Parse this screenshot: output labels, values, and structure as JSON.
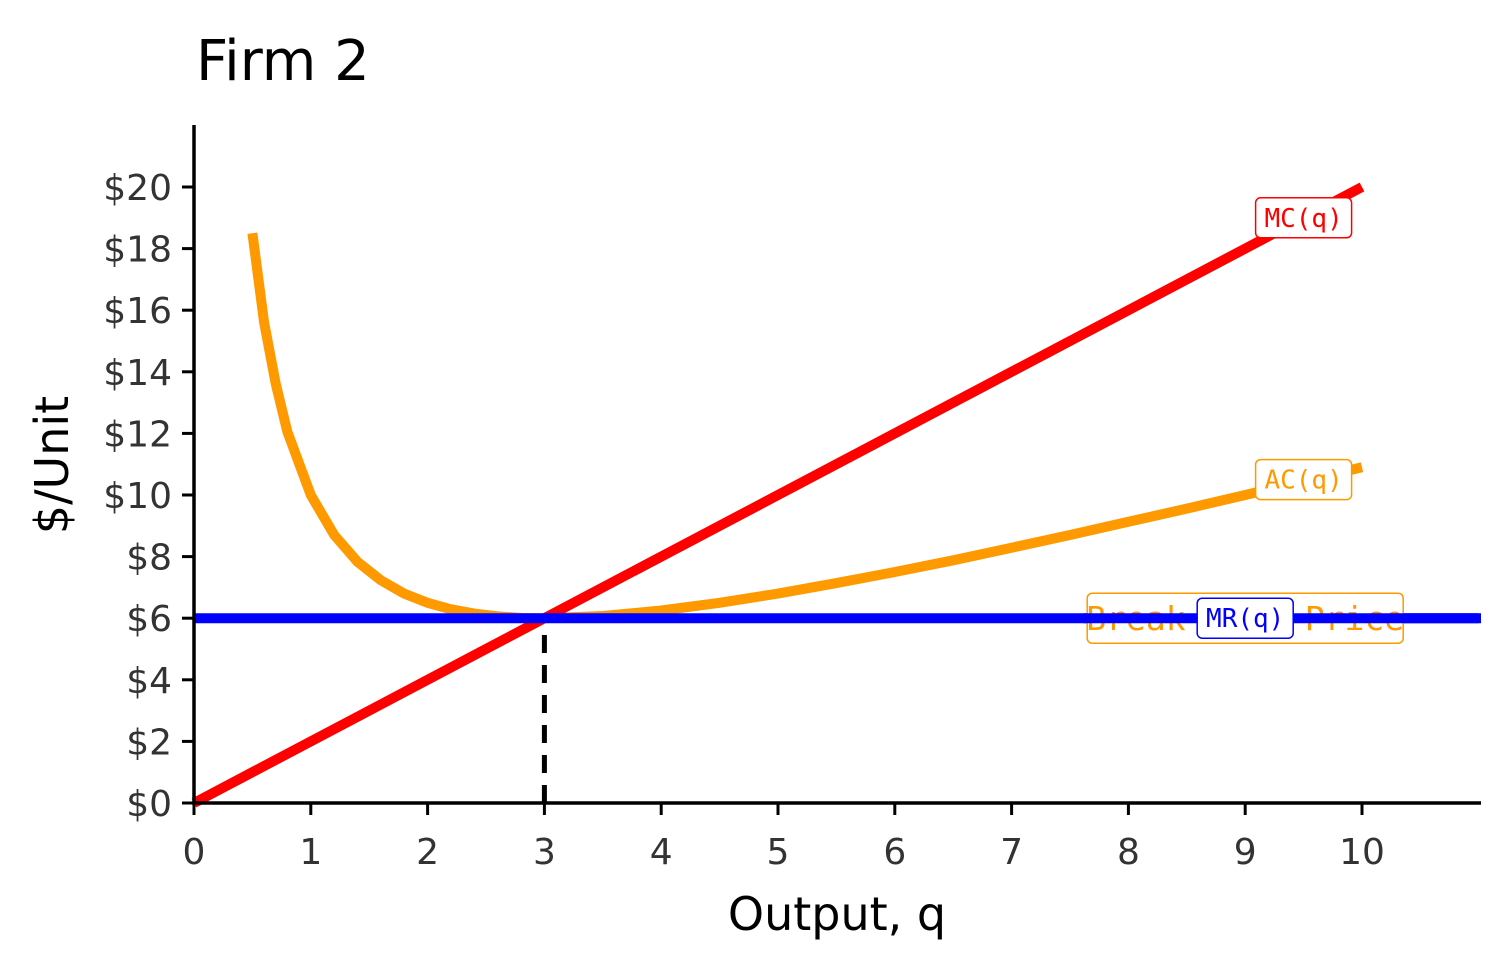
{
  "chart_data": {
    "type": "line",
    "title": "Firm 2",
    "xlabel": "Output, q",
    "ylabel": "$/Unit",
    "xlim": [
      0,
      11
    ],
    "ylim": [
      0,
      22
    ],
    "x_ticks": [
      0,
      1,
      2,
      3,
      4,
      5,
      6,
      7,
      8,
      9,
      10
    ],
    "x_tick_labels": [
      "0",
      "1",
      "2",
      "3",
      "4",
      "5",
      "6",
      "7",
      "8",
      "9",
      "10"
    ],
    "y_ticks": [
      0,
      2,
      4,
      6,
      8,
      10,
      12,
      14,
      16,
      18,
      20
    ],
    "y_tick_labels": [
      "$0",
      "$2",
      "$4",
      "$6",
      "$8",
      "$10",
      "$12",
      "$14",
      "$16",
      "$18",
      "$20"
    ],
    "grid": false,
    "series": [
      {
        "name": "MC(q)",
        "color": "#ff0000",
        "x": [
          0,
          10
        ],
        "y": [
          0,
          20
        ],
        "label_at": [
          9.5,
          19
        ]
      },
      {
        "name": "AC(q)",
        "color": "#ff9900",
        "x": [
          0.5,
          0.6,
          0.7,
          0.8,
          1.0,
          1.2,
          1.4,
          1.6,
          1.8,
          2.0,
          2.2,
          2.4,
          2.6,
          2.8,
          3.0,
          3.5,
          4.0,
          4.5,
          5.0,
          5.5,
          6.0,
          6.5,
          7.0,
          7.5,
          8.0,
          8.5,
          9.0,
          9.5,
          10.0
        ],
        "y": [
          18.5,
          15.6,
          13.6,
          12.05,
          10.0,
          8.7,
          7.83,
          7.23,
          6.8,
          6.5,
          6.29,
          6.15,
          6.06,
          6.01,
          6.0,
          6.07,
          6.25,
          6.5,
          6.8,
          7.14,
          7.5,
          7.88,
          8.29,
          8.7,
          9.13,
          9.56,
          10.0,
          10.45,
          10.9
        ],
        "label_at": [
          9.5,
          10.5
        ]
      },
      {
        "name": "MR(q)",
        "color": "#0000ff",
        "x": [
          0,
          11
        ],
        "y": [
          6,
          6
        ],
        "label_at": [
          9.0,
          6.0
        ]
      }
    ],
    "annotations": [
      {
        "text": "Break-Even Price",
        "color": "#ff9900",
        "at": [
          9.0,
          6.0
        ]
      },
      {
        "type": "vertical-dashed",
        "x": 3,
        "y_from": 0,
        "y_to": 6,
        "color": "#000000"
      }
    ]
  }
}
